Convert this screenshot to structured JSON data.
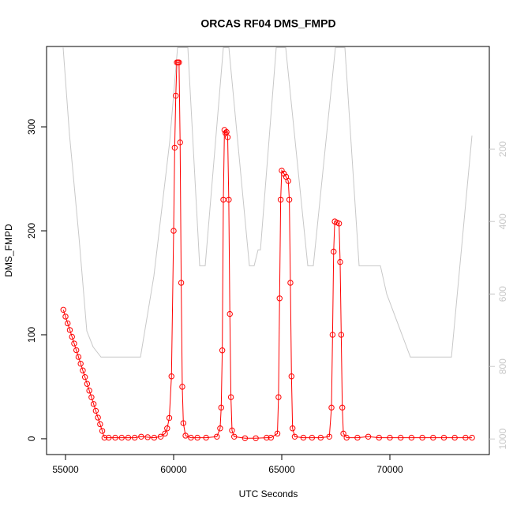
{
  "chart_data": {
    "type": "line",
    "title": "ORCAS RF04 DMS_FMPD",
    "x_label": "UTC Seconds",
    "y_label": "DMS_FMPD",
    "xlim": [
      54124,
      74599
    ],
    "xticks": [
      55000,
      60000,
      65000,
      70000
    ],
    "ylim": [
      -15.2,
      377.3
    ],
    "yticks": [
      0,
      100,
      200,
      300
    ],
    "y2lim": [
      1043,
      -83
    ],
    "y2ticks": [
      200,
      400,
      600,
      800,
      1000
    ],
    "series": [
      {
        "color": "#ff0000",
        "markers": true,
        "x": [
          54900,
          55000,
          55100,
          55200,
          55300,
          55400,
          55500,
          55600,
          55700,
          55800,
          55900,
          56000,
          56100,
          56200,
          56300,
          56400,
          56500,
          56600,
          56700,
          56800,
          57000,
          57300,
          57600,
          57900,
          58200,
          58500,
          58800,
          59100,
          59400,
          59600,
          59700,
          59800,
          59900,
          60000,
          60050,
          60100,
          60150,
          60200,
          60250,
          60300,
          60350,
          60400,
          60450,
          60550,
          60800,
          61100,
          61500,
          62000,
          62150,
          62200,
          62250,
          62300,
          62350,
          62400,
          62450,
          62500,
          62550,
          62600,
          62650,
          62700,
          62800,
          63300,
          63800,
          64300,
          64500,
          64800,
          64850,
          64900,
          64950,
          65000,
          65100,
          65200,
          65300,
          65350,
          65400,
          65450,
          65500,
          65600,
          66000,
          66400,
          66800,
          67200,
          67300,
          67350,
          67400,
          67450,
          67550,
          67650,
          67700,
          67750,
          67800,
          67850,
          68000,
          68500,
          69000,
          69500,
          70000,
          70500,
          71000,
          71500,
          72000,
          72500,
          73000,
          73500,
          73800
        ],
        "values": [
          124,
          117.5,
          111,
          104.6,
          98.1,
          91.6,
          85.2,
          78.7,
          72.2,
          65.7,
          59.3,
          52.8,
          46.3,
          39.9,
          33.4,
          26.9,
          20.4,
          14,
          7.5,
          1,
          1,
          1,
          1,
          1,
          1,
          2,
          1.5,
          1,
          2,
          5,
          10,
          20,
          60,
          200,
          280,
          330,
          362,
          362,
          362,
          285,
          150,
          50,
          15,
          3,
          1,
          1,
          1,
          2,
          10,
          30,
          85,
          230,
          297,
          294,
          295,
          290,
          230,
          120,
          40,
          8,
          2,
          0.5,
          0.5,
          1,
          1,
          5,
          40,
          135,
          230,
          258,
          255,
          252,
          248,
          230,
          150,
          60,
          10,
          2,
          1,
          1,
          1,
          2,
          30,
          100,
          180,
          209,
          208,
          207,
          170,
          100,
          30,
          5,
          1,
          1,
          2,
          1,
          1,
          1,
          1,
          1,
          1,
          1,
          1,
          1,
          1
        ]
      },
      {
        "color": "#c8c8c8",
        "axis": "y2",
        "markers": false,
        "x": [
          54890,
          55182,
          55620,
          55985,
          56277,
          56642,
          58467,
          59088,
          59818,
          60182,
          60657,
          61204,
          61460,
          62299,
          62555,
          63504,
          63723,
          63905,
          64015,
          64745,
          65182,
          66204,
          66460,
          67482,
          67920,
          68577,
          69562,
          69854,
          70949,
          72847,
          73796
        ],
        "values": [
          -80,
          159,
          441,
          702,
          746,
          774,
          774,
          550,
          180,
          -80,
          -80,
          522,
          522,
          -80,
          -80,
          522,
          522,
          478,
          478,
          -80,
          -80,
          522,
          522,
          -80,
          -80,
          522,
          522,
          600,
          774,
          774,
          163
        ]
      }
    ]
  }
}
